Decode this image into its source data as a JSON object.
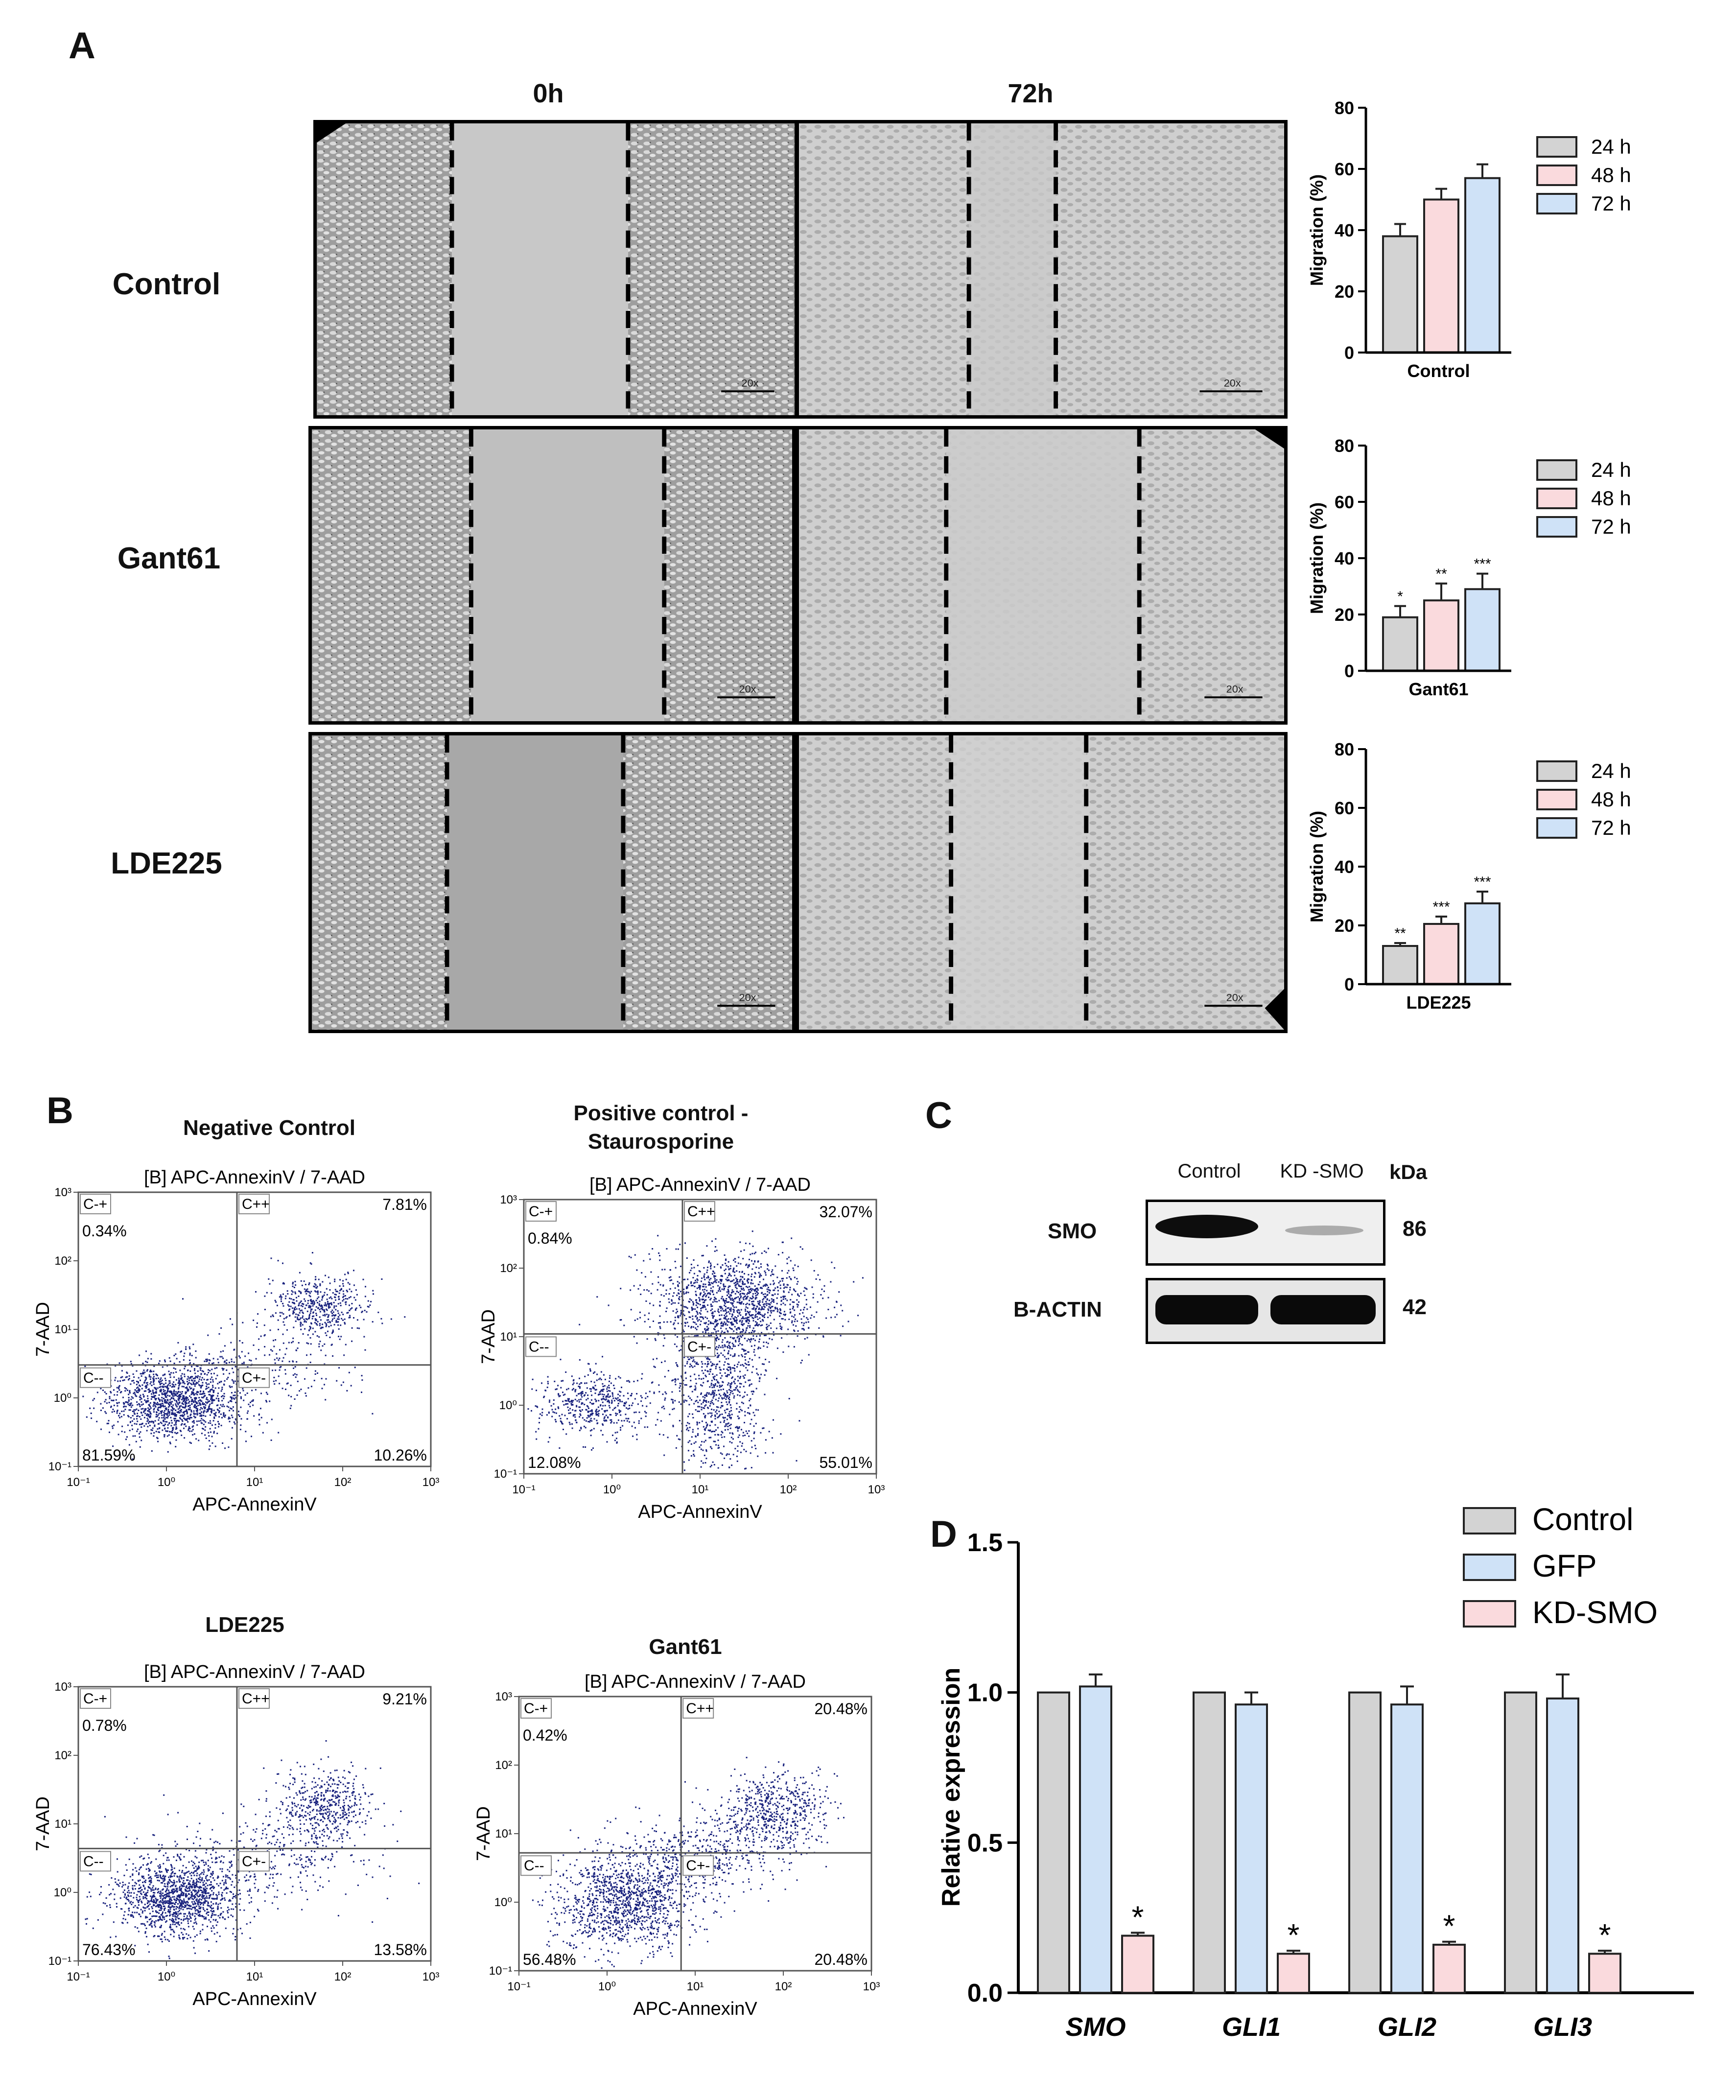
{
  "panel_A": {
    "letter": "A",
    "time_labels": [
      "0h",
      "72h"
    ],
    "row_labels": [
      "Control",
      "Gant61",
      "LDE225"
    ],
    "scale_label": "20x"
  },
  "panel_B": {
    "letter": "B",
    "plot_title_prefix": "[B] APC-AnnexinV / 7-AAD",
    "xlabel": "APC-AnnexinV",
    "ylabel": "7-AAD",
    "quadrant_names": [
      "C-+",
      "C++",
      "C--",
      "C+-"
    ],
    "plots": [
      {
        "title": "Negative Control",
        "q_ul": "0.34%",
        "q_ur": "7.81%",
        "q_ll": "81.59%",
        "q_lr": "10.26%"
      },
      {
        "title": "Positive control - Staurosporine",
        "q_ul": "0.84%",
        "q_ur": "32.07%",
        "q_ll": "12.08%",
        "q_lr": "55.01%"
      },
      {
        "title": "LDE225",
        "q_ul": "0.78%",
        "q_ur": "9.21%",
        "q_ll": "76.43%",
        "q_lr": "13.58%"
      },
      {
        "title": "Gant61",
        "q_ul": "0.42%",
        "q_ur": "20.48%",
        "q_ll": "56.48%",
        "q_lr": "20.48%"
      }
    ]
  },
  "panel_C": {
    "letter": "C",
    "lanes": [
      "Control",
      "KD -SMO"
    ],
    "unit": "kDa",
    "rows": [
      {
        "label": "SMO",
        "kda": "86"
      },
      {
        "label": "B-ACTIN",
        "kda": "42"
      }
    ]
  },
  "panel_D": {
    "letter": "D"
  },
  "colors": {
    "gray": "#d3d3d3",
    "pink": "#fadadd",
    "blue": "#cfe2f7",
    "flow_dot": "#1a237e"
  },
  "chart_data": [
    {
      "type": "bar",
      "categories": [
        "Control"
      ],
      "series": [
        {
          "name": "24 h",
          "values": [
            38
          ]
        },
        {
          "name": "48 h",
          "values": [
            50
          ]
        },
        {
          "name": "72 h",
          "values": [
            57
          ]
        }
      ],
      "errors": [
        [
          4
        ],
        [
          3.5
        ],
        [
          4.5
        ]
      ],
      "significance": [
        [
          ""
        ],
        [
          ""
        ],
        [
          ""
        ]
      ],
      "xlabel": "Control",
      "ylabel": "Migration (%)",
      "ylim": [
        0,
        80
      ],
      "yticks": [
        0,
        20,
        40,
        60,
        80
      ],
      "legend": "top-right"
    },
    {
      "type": "bar",
      "categories": [
        "Gant61"
      ],
      "series": [
        {
          "name": "24 h",
          "values": [
            19
          ]
        },
        {
          "name": "48 h",
          "values": [
            25
          ]
        },
        {
          "name": "72 h",
          "values": [
            29
          ]
        }
      ],
      "errors": [
        [
          4
        ],
        [
          6
        ],
        [
          5.5
        ]
      ],
      "significance": [
        [
          "*"
        ],
        [
          "**"
        ],
        [
          "***"
        ]
      ],
      "xlabel": "Gant61",
      "ylabel": "Migration (%)",
      "ylim": [
        0,
        80
      ],
      "yticks": [
        0,
        20,
        40,
        60,
        80
      ],
      "legend": "top-right"
    },
    {
      "type": "bar",
      "categories": [
        "LDE225"
      ],
      "series": [
        {
          "name": "24 h",
          "values": [
            13
          ]
        },
        {
          "name": "48 h",
          "values": [
            20.5
          ]
        },
        {
          "name": "72 h",
          "values": [
            27.5
          ]
        }
      ],
      "errors": [
        [
          1
        ],
        [
          2.5
        ],
        [
          4
        ]
      ],
      "significance": [
        [
          "**"
        ],
        [
          "***"
        ],
        [
          "***"
        ]
      ],
      "xlabel": "LDE225",
      "ylabel": "Migration (%)",
      "ylim": [
        0,
        80
      ],
      "yticks": [
        0,
        20,
        40,
        60,
        80
      ],
      "legend": "top-right"
    },
    {
      "type": "bar",
      "categories": [
        "SMO",
        "GLI1",
        "GLI2",
        "GLI3"
      ],
      "series": [
        {
          "name": "Control",
          "values": [
            1.0,
            1.0,
            1.0,
            1.0
          ]
        },
        {
          "name": "GFP",
          "values": [
            1.02,
            0.96,
            0.96,
            0.98
          ]
        },
        {
          "name": "KD-SMO",
          "values": [
            0.19,
            0.13,
            0.16,
            0.13
          ]
        }
      ],
      "errors": [
        [
          0,
          0,
          0,
          0
        ],
        [
          0.04,
          0.04,
          0.06,
          0.08
        ],
        [
          0.01,
          0.01,
          0.01,
          0.01
        ]
      ],
      "significance": [
        [
          "",
          "",
          "",
          ""
        ],
        [
          "",
          "",
          "",
          ""
        ],
        [
          "*",
          "*",
          "*",
          "*"
        ]
      ],
      "xlabel": "",
      "ylabel": "Relative expression",
      "ylim": [
        0,
        1.5
      ],
      "yticks": [
        0.0,
        0.5,
        1.0,
        1.5
      ],
      "legend": "top-right"
    }
  ]
}
